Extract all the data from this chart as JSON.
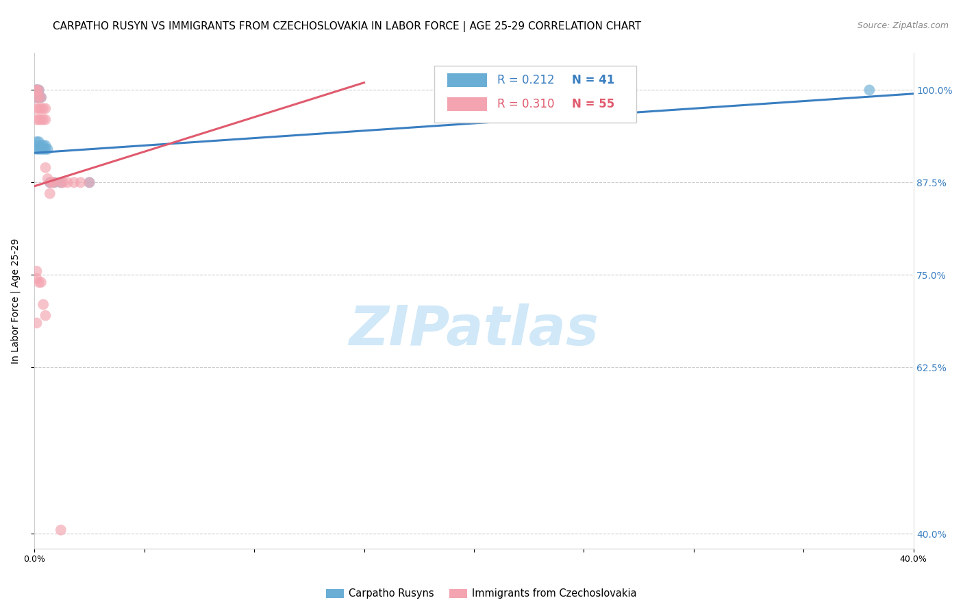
{
  "title": "CARPATHO RUSYN VS IMMIGRANTS FROM CZECHOSLOVAKIA IN LABOR FORCE | AGE 25-29 CORRELATION CHART",
  "source": "Source: ZipAtlas.com",
  "ylabel": "In Labor Force | Age 25-29",
  "xlim": [
    0.0,
    0.4
  ],
  "ylim": [
    0.38,
    1.05
  ],
  "yticks": [
    0.4,
    0.625,
    0.75,
    0.875,
    1.0
  ],
  "ytick_labels": [
    "40.0%",
    "62.5%",
    "75.0%",
    "87.5%",
    "100.0%"
  ],
  "xticks": [
    0.0,
    0.05,
    0.1,
    0.15,
    0.2,
    0.25,
    0.3,
    0.35,
    0.4
  ],
  "xtick_labels": [
    "0.0%",
    "",
    "",
    "",
    "",
    "",
    "",
    "",
    "40.0%"
  ],
  "legend_R1": "0.212",
  "legend_N1": "41",
  "legend_R2": "0.310",
  "legend_N2": "55",
  "color_blue": "#6aaed6",
  "color_pink": "#f4a4b0",
  "color_blue_line": "#3a7fc1",
  "color_pink_line": "#e05a6e",
  "color_blue_text": "#3a7fc1",
  "color_axis_right": "#3a7fc1",
  "watermark_color": "#d0e8f8",
  "watermark_text": "ZIPatlas",
  "background_color": "#ffffff",
  "blue_x": [
    0.001,
    0.001,
    0.001,
    0.001,
    0.001,
    0.001,
    0.001,
    0.002,
    0.002,
    0.002,
    0.002,
    0.003,
    0.003,
    0.003,
    0.004,
    0.004,
    0.005,
    0.005,
    0.006,
    0.007,
    0.009,
    0.012,
    0.025,
    0.38
  ],
  "blue_y": [
    1.0,
    1.0,
    1.0,
    0.99,
    0.93,
    0.925,
    0.92,
    1.0,
    0.99,
    0.93,
    0.92,
    0.99,
    0.925,
    0.92,
    0.925,
    0.92,
    0.925,
    0.92,
    0.92,
    0.875,
    0.875,
    0.875,
    0.875,
    1.0
  ],
  "pink_x": [
    0.001,
    0.001,
    0.001,
    0.001,
    0.001,
    0.002,
    0.002,
    0.002,
    0.002,
    0.003,
    0.003,
    0.003,
    0.004,
    0.004,
    0.005,
    0.005,
    0.005,
    0.006,
    0.007,
    0.007,
    0.008,
    0.009,
    0.012,
    0.013,
    0.015,
    0.018,
    0.021,
    0.025,
    0.001,
    0.001,
    0.002,
    0.003,
    0.004,
    0.005,
    0.001,
    0.012
  ],
  "pink_y": [
    1.0,
    1.0,
    0.99,
    0.975,
    0.96,
    1.0,
    0.99,
    0.975,
    0.96,
    0.99,
    0.975,
    0.96,
    0.975,
    0.96,
    0.975,
    0.96,
    0.895,
    0.88,
    0.875,
    0.86,
    0.875,
    0.875,
    0.875,
    0.875,
    0.875,
    0.875,
    0.875,
    0.875,
    0.755,
    0.745,
    0.74,
    0.74,
    0.71,
    0.695,
    0.685,
    0.405
  ],
  "blue_trend_x": [
    0.0,
    0.4
  ],
  "blue_trend_y": [
    0.915,
    0.995
  ],
  "pink_trend_x": [
    0.0,
    0.15
  ],
  "pink_trend_y": [
    0.87,
    1.01
  ],
  "title_fontsize": 11,
  "source_fontsize": 9,
  "label_fontsize": 10,
  "tick_fontsize": 9,
  "legend_fontsize": 12,
  "watermark_fontsize": 58
}
